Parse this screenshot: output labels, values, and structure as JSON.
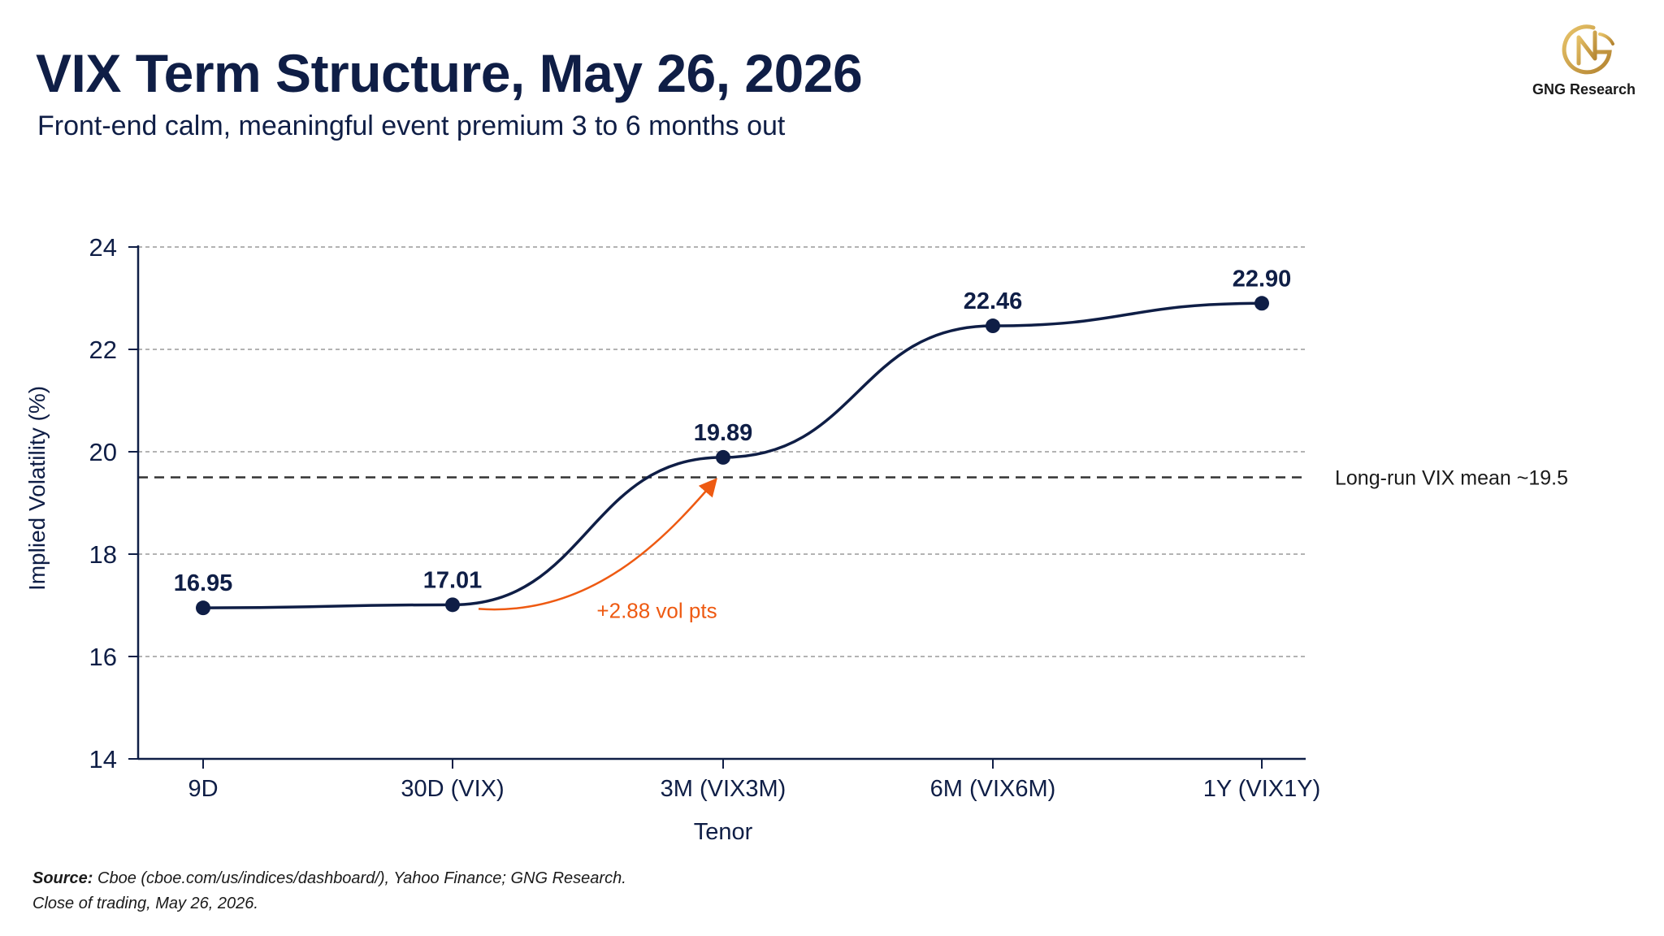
{
  "title": "VIX Term Structure, May 26, 2026",
  "subtitle": "Front-end calm, meaningful event premium 3 to 6 months out",
  "brand": {
    "name": "GNG Research",
    "logo": "gng-monogram-logo",
    "logo_color": "#c9a24a"
  },
  "colors": {
    "series": "#0f1e46",
    "annotation": "#ee5a12",
    "grid": "#9a9a9a",
    "reference": "#333333"
  },
  "chart_data": {
    "type": "line",
    "title": "VIX Term Structure, May 26, 2026",
    "xlabel": "Tenor",
    "ylabel": "Implied Volatility (%)",
    "categories": [
      "9D",
      "30D (VIX)",
      "3M (VIX3M)",
      "6M (VIX6M)",
      "1Y (VIX1Y)"
    ],
    "series": [
      {
        "values": [
          16.95,
          17.01,
          19.89,
          22.46,
          22.9
        ]
      }
    ],
    "data_labels": [
      "16.95",
      "17.01",
      "19.89",
      "22.46",
      "22.90"
    ],
    "ylim": [
      14,
      24
    ],
    "yticks": [
      14,
      16,
      18,
      20,
      22,
      24
    ],
    "grid": "horizontal-dashed",
    "reference_line": {
      "value": 19.5,
      "label": "Long-run VIX mean ~19.5",
      "style": "dashed"
    },
    "annotation": {
      "text": "+2.88 vol pts",
      "from": "30D (VIX)",
      "to": "3M (VIX3M)"
    }
  },
  "footer": {
    "source_label": "Source:",
    "source_text": "Cboe (cboe.com/us/indices/dashboard/), Yahoo Finance; GNG Research.",
    "note": "Close of trading, May 26, 2026."
  }
}
